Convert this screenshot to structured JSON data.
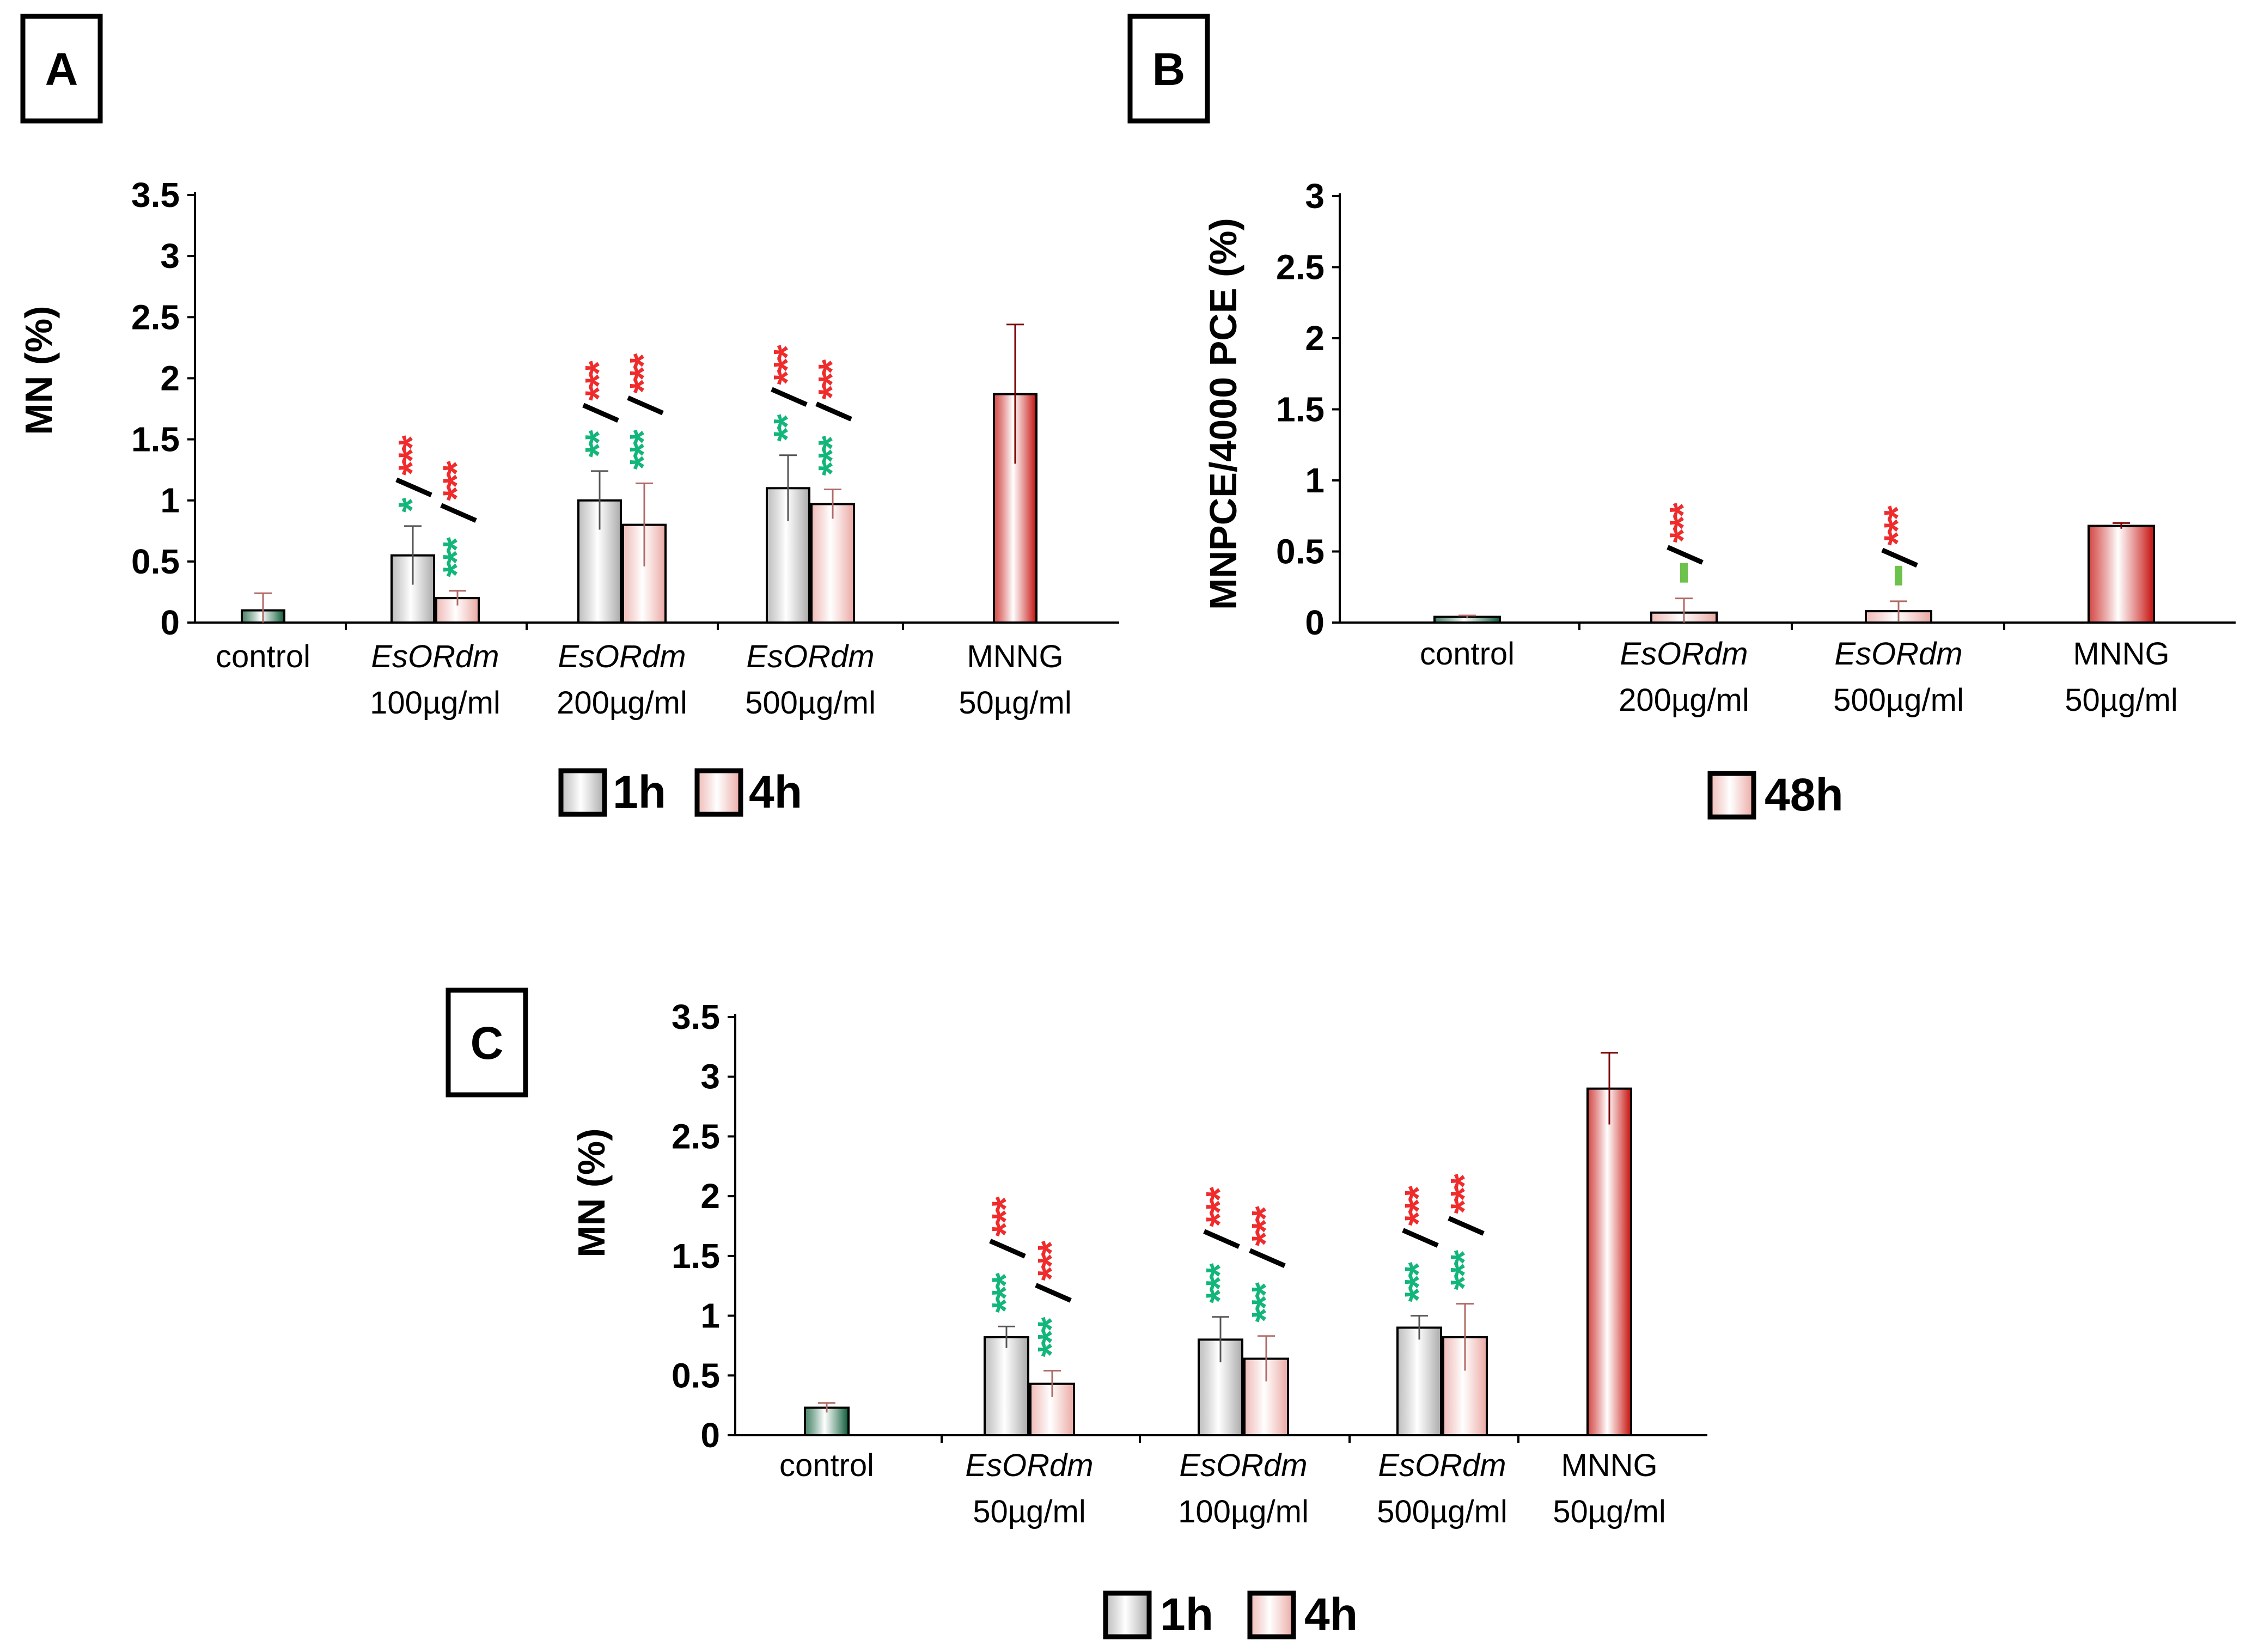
{
  "chart_data": [
    {
      "panel": "A",
      "type": "bar",
      "ylabel": "MN (%)",
      "ylim": [
        0,
        3.5
      ],
      "yticks": [
        "0",
        "0.5",
        "1",
        "1.5",
        "2",
        "2.5",
        "3",
        "3.5"
      ],
      "categories": [
        {
          "line1": "control",
          "line2": "",
          "italic": false
        },
        {
          "line1": "EsORdm",
          "line2": "100µg/ml",
          "italic": true
        },
        {
          "line1": "EsORdm",
          "line2": "200µg/ml",
          "italic": true
        },
        {
          "line1": "EsORdm",
          "line2": "500µg/ml",
          "italic": true
        },
        {
          "line1": "MNNG",
          "line2": "50µg/ml",
          "italic": false
        }
      ],
      "legend": [
        "1h",
        "4h"
      ],
      "bars": [
        {
          "cat": 0,
          "slot": "single",
          "value": 0.1,
          "err": 0.14,
          "fill": "green"
        },
        {
          "cat": 1,
          "slot": "left",
          "value": 0.55,
          "err": 0.24,
          "fill": "grey"
        },
        {
          "cat": 1,
          "slot": "right",
          "value": 0.2,
          "err": 0.06,
          "fill": "pink"
        },
        {
          "cat": 2,
          "slot": "left",
          "value": 1.0,
          "err": 0.24,
          "fill": "grey"
        },
        {
          "cat": 2,
          "slot": "right",
          "value": 0.8,
          "err": 0.34,
          "fill": "pink"
        },
        {
          "cat": 3,
          "slot": "left",
          "value": 1.1,
          "err": 0.27,
          "fill": "grey"
        },
        {
          "cat": 3,
          "slot": "right",
          "value": 0.97,
          "err": 0.12,
          "fill": "pink"
        },
        {
          "cat": 4,
          "slot": "single",
          "value": 1.87,
          "err": 0.57,
          "fill": "red"
        }
      ],
      "annotations": [
        {
          "cat": 1,
          "slot": "left",
          "green": "*",
          "red": "***"
        },
        {
          "cat": 1,
          "slot": "right",
          "green": "***",
          "red": "***"
        },
        {
          "cat": 2,
          "slot": "left",
          "green": "**",
          "red": "***"
        },
        {
          "cat": 2,
          "slot": "right",
          "green": "***",
          "red": "***"
        },
        {
          "cat": 3,
          "slot": "left",
          "green": "**",
          "red": "***"
        },
        {
          "cat": 3,
          "slot": "right",
          "green": "***",
          "red": "***"
        }
      ]
    },
    {
      "panel": "B",
      "type": "bar",
      "ylabel": "MNPCE/4000 PCE (%)",
      "ylim": [
        0,
        3
      ],
      "yticks": [
        "0",
        "0.5",
        "1",
        "1.5",
        "2",
        "2.5",
        "3"
      ],
      "categories": [
        {
          "line1": "control",
          "line2": "",
          "italic": false
        },
        {
          "line1": "EsORdm",
          "line2": "200µg/ml",
          "italic": true
        },
        {
          "line1": "EsORdm",
          "line2": "500µg/ml",
          "italic": true
        },
        {
          "line1": "MNNG",
          "line2": "50µg/ml",
          "italic": false
        }
      ],
      "legend": [
        "48h"
      ],
      "bars": [
        {
          "cat": 0,
          "slot": "single",
          "value": 0.04,
          "err": 0.01,
          "fill": "green"
        },
        {
          "cat": 1,
          "slot": "single",
          "value": 0.07,
          "err": 0.1,
          "fill": "pink"
        },
        {
          "cat": 2,
          "slot": "single",
          "value": 0.08,
          "err": 0.07,
          "fill": "pink"
        },
        {
          "cat": 3,
          "slot": "single",
          "value": 0.68,
          "err": 0.02,
          "fill": "red"
        }
      ],
      "annotations": [
        {
          "cat": 1,
          "slot": "single",
          "green": "",
          "red": "***"
        },
        {
          "cat": 2,
          "slot": "single",
          "green": "",
          "red": "***"
        }
      ]
    },
    {
      "panel": "C",
      "type": "bar",
      "ylabel": "MN (%)",
      "ylim": [
        0,
        3.5
      ],
      "yticks": [
        "0",
        "0.5",
        "1",
        "1.5",
        "2",
        "2.5",
        "3",
        "3.5"
      ],
      "categories": [
        {
          "line1": "control",
          "line2": "",
          "italic": false
        },
        {
          "line1": "EsORdm",
          "line2": "50µg/ml",
          "italic": true
        },
        {
          "line1": "EsORdm",
          "line2": "100µg/ml",
          "italic": true
        },
        {
          "line1": "EsORdm",
          "line2": "500µg/ml",
          "italic": true
        },
        {
          "line1": "MNNG",
          "line2": "50µg/ml",
          "italic": false
        }
      ],
      "legend": [
        "1h",
        "4h"
      ],
      "bars": [
        {
          "cat": 0,
          "slot": "single",
          "value": 0.23,
          "err": 0.04,
          "fill": "green"
        },
        {
          "cat": 1,
          "slot": "left",
          "value": 0.82,
          "err": 0.09,
          "fill": "grey"
        },
        {
          "cat": 1,
          "slot": "right",
          "value": 0.43,
          "err": 0.11,
          "fill": "pink"
        },
        {
          "cat": 2,
          "slot": "left",
          "value": 0.8,
          "err": 0.19,
          "fill": "grey"
        },
        {
          "cat": 2,
          "slot": "right",
          "value": 0.64,
          "err": 0.19,
          "fill": "pink"
        },
        {
          "cat": 3,
          "slot": "left",
          "value": 0.9,
          "err": 0.1,
          "fill": "grey"
        },
        {
          "cat": 3,
          "slot": "right",
          "value": 0.82,
          "err": 0.28,
          "fill": "pink"
        },
        {
          "cat": 4,
          "slot": "single",
          "value": 2.9,
          "err": 0.3,
          "fill": "red"
        }
      ],
      "annotations": [
        {
          "cat": 1,
          "slot": "left",
          "green": "***",
          "red": "***"
        },
        {
          "cat": 1,
          "slot": "right",
          "green": "***",
          "red": "***"
        },
        {
          "cat": 2,
          "slot": "left",
          "green": "***",
          "red": "***"
        },
        {
          "cat": 2,
          "slot": "right",
          "green": "***",
          "red": "***"
        },
        {
          "cat": 3,
          "slot": "left",
          "green": "***",
          "red": "***"
        },
        {
          "cat": 3,
          "slot": "right",
          "green": "***",
          "red": "***"
        }
      ]
    }
  ],
  "colors": {
    "green": "#0f7a4a",
    "grey": "#cfcfcf",
    "pink": "#f4c4c0",
    "red": "#e0140f",
    "star_red": "#ef2b2b",
    "star_green": "#12b67a",
    "bar_green_mark": "#6cc24a",
    "axis": "#000000",
    "error": "#8a8a8a"
  }
}
